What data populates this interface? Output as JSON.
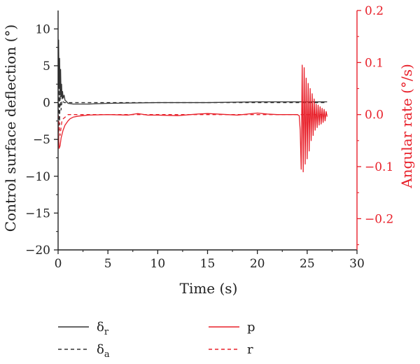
{
  "chart_data": {
    "type": "line",
    "xlabel": "Time (s)",
    "ylabel_left": "Control surface deflection (°)",
    "ylabel_right": "Angular rate (°/s)",
    "xlim": [
      0,
      30
    ],
    "ylim_left": [
      -20,
      12.5
    ],
    "ylim_right": [
      -0.26,
      0.2
    ],
    "xticks": [
      0,
      5,
      10,
      15,
      20,
      25,
      30
    ],
    "yticks_left": [
      10,
      5,
      0,
      -5,
      -10,
      -15,
      -20
    ],
    "yticks_right": [
      0.2,
      0.1,
      0.0,
      -0.1,
      -0.2
    ],
    "ytick_labels_right": [
      "0.2",
      "0.1",
      "0.0",
      "−0.1",
      "−0.2"
    ],
    "ytick_labels_left": [
      "10",
      "5",
      "0",
      "−5",
      "−10",
      "−15",
      "−20"
    ],
    "grid": false,
    "legend_position": "bottom",
    "colors": {
      "left_axis": "#222222",
      "right_axis": "#e8202a"
    },
    "series": [
      {
        "name": "δr",
        "name_base": "δ",
        "name_sub": "r",
        "axis": "left",
        "style": "solid",
        "color": "#333333",
        "x": [
          0,
          0.05,
          0.1,
          0.15,
          0.2,
          0.25,
          0.3,
          0.35,
          0.4,
          0.45,
          0.5,
          0.6,
          0.7,
          0.8,
          1.0,
          1.5,
          2,
          3,
          5,
          10,
          15,
          20,
          25,
          27
        ],
        "y": [
          0,
          8.5,
          2.0,
          6.0,
          1.0,
          4.5,
          0.8,
          2.5,
          0.5,
          1.5,
          0.6,
          1.0,
          0.3,
          0.2,
          -0.1,
          -0.2,
          -0.2,
          -0.2,
          -0.1,
          0.0,
          0.0,
          0.1,
          0.1,
          0.1
        ]
      },
      {
        "name": "δa",
        "name_base": "δ",
        "name_sub": "a",
        "axis": "left",
        "style": "dashed",
        "color": "#333333",
        "x": [
          0,
          0.05,
          0.1,
          0.15,
          0.2,
          0.3,
          0.4,
          0.6,
          1.0,
          2,
          27
        ],
        "y": [
          0,
          -5.0,
          3.0,
          -3.0,
          1.0,
          -1.0,
          0.3,
          0.0,
          0.0,
          0.0,
          0.0
        ]
      },
      {
        "name": "p",
        "axis": "right",
        "style": "solid",
        "color": "#e8202a",
        "x": [
          0.0,
          0.1,
          0.2,
          0.3,
          0.5,
          0.7,
          1.0,
          1.2,
          1.5,
          2.0,
          3.0,
          5.0,
          7.0,
          8.0,
          9.0,
          10.0,
          12.0,
          14.0,
          15.0,
          16.0,
          18.0,
          20.0,
          21.0,
          22.0,
          24.0,
          24.2,
          24.3,
          24.4,
          24.5,
          24.6,
          24.7,
          24.8,
          24.9,
          25.0,
          25.1,
          25.2,
          25.3,
          25.4,
          25.5,
          25.6,
          25.7,
          25.8,
          25.9,
          26.0,
          26.1,
          26.2,
          26.3,
          26.4,
          26.5,
          26.6,
          26.7,
          26.8,
          26.9,
          27.0
        ],
        "y": [
          -0.015,
          -0.065,
          -0.06,
          -0.045,
          -0.03,
          -0.02,
          -0.012,
          -0.008,
          -0.005,
          -0.003,
          -0.001,
          0.0,
          -0.001,
          0.002,
          -0.001,
          -0.001,
          -0.002,
          0.001,
          0.002,
          0.001,
          -0.001,
          0.003,
          0.001,
          0.0,
          0.0,
          -0.002,
          -0.03,
          -0.105,
          0.095,
          -0.11,
          0.09,
          -0.095,
          0.07,
          -0.085,
          0.06,
          -0.07,
          0.05,
          -0.05,
          0.04,
          -0.04,
          0.03,
          -0.03,
          0.02,
          -0.025,
          0.018,
          -0.02,
          0.015,
          -0.018,
          0.012,
          -0.015,
          0.01,
          -0.012,
          0.006,
          -0.004
        ]
      },
      {
        "name": "r",
        "axis": "right",
        "style": "dashed",
        "color": "#e8202a",
        "x": [
          0,
          0.2,
          0.4,
          0.7,
          1.0,
          2.0,
          27.0
        ],
        "y": [
          0.0,
          -0.04,
          -0.01,
          -0.005,
          0.0,
          0.0,
          0.0
        ]
      }
    ]
  }
}
